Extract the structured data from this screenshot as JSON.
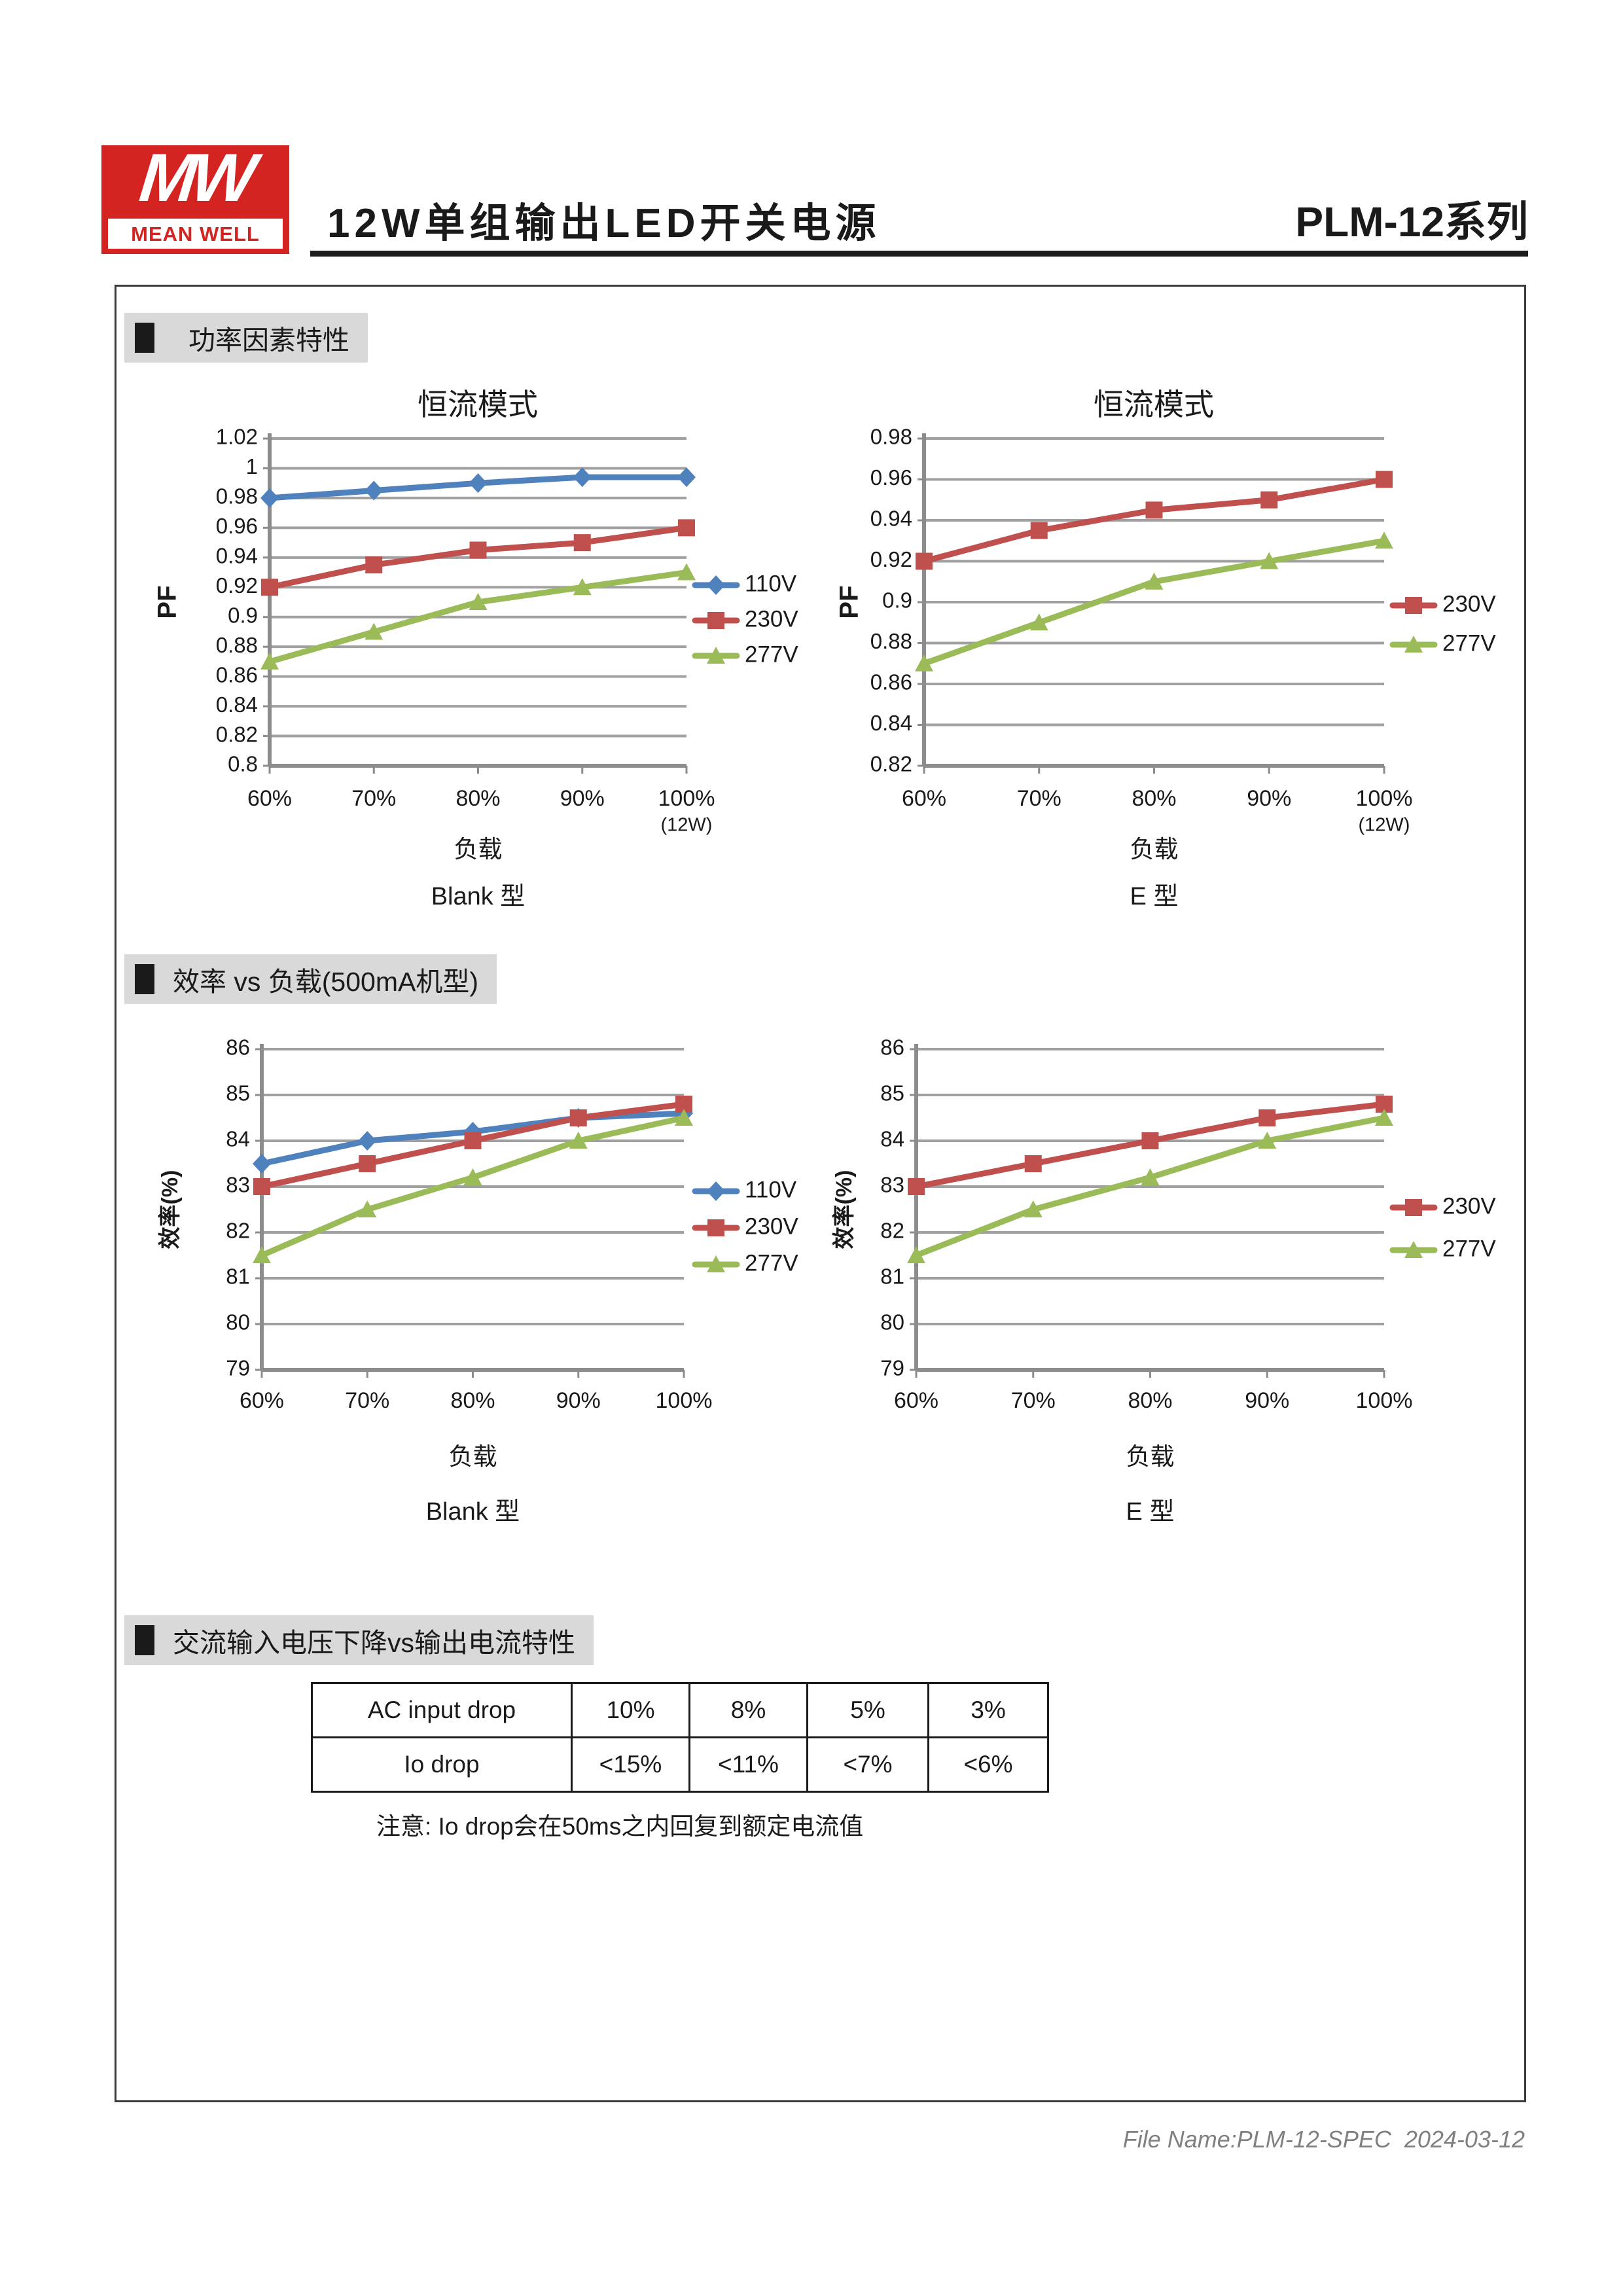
{
  "header": {
    "logo_mw": "MW",
    "logo_brand": "MEAN WELL",
    "title": "12W单组输出LED开关电源",
    "series_model": "PLM-12系列"
  },
  "sections": [
    {
      "title": "功率因素特性"
    },
    {
      "title": "效率 vs 负载(500mA机型)"
    },
    {
      "title": "交流输入电压下降vs输出电流特性"
    }
  ],
  "chart_data": [
    {
      "id": "pf-blank",
      "type": "line",
      "title": "恒流模式",
      "ylabel": "PF",
      "xlabel": "负载",
      "x_note": "(12W)",
      "caption": "Blank 型",
      "categories": [
        "60%",
        "70%",
        "80%",
        "90%",
        "100%"
      ],
      "ylim": [
        0.8,
        1.02
      ],
      "ystep": 0.02,
      "grid": true,
      "legend_position": "right",
      "series": [
        {
          "name": "110V",
          "color": "#4F81BD",
          "marker": "diamond",
          "values": [
            0.98,
            0.985,
            0.99,
            0.994,
            0.994
          ]
        },
        {
          "name": "230V",
          "color": "#C0504D",
          "marker": "square",
          "values": [
            0.92,
            0.935,
            0.945,
            0.95,
            0.96
          ]
        },
        {
          "name": "277V",
          "color": "#9BBB59",
          "marker": "triangle",
          "values": [
            0.87,
            0.89,
            0.91,
            0.92,
            0.93
          ]
        }
      ]
    },
    {
      "id": "pf-e",
      "type": "line",
      "title": "恒流模式",
      "ylabel": "PF",
      "xlabel": "负载",
      "x_note": "(12W)",
      "caption": "E 型",
      "categories": [
        "60%",
        "70%",
        "80%",
        "90%",
        "100%"
      ],
      "ylim": [
        0.82,
        0.98
      ],
      "ystep": 0.02,
      "grid": true,
      "legend_position": "right",
      "series": [
        {
          "name": "230V",
          "color": "#C0504D",
          "marker": "square",
          "values": [
            0.92,
            0.935,
            0.945,
            0.95,
            0.96
          ]
        },
        {
          "name": "277V",
          "color": "#9BBB59",
          "marker": "triangle",
          "values": [
            0.87,
            0.89,
            0.91,
            0.92,
            0.93
          ]
        }
      ]
    },
    {
      "id": "eff-blank",
      "type": "line",
      "title": "",
      "ylabel": "效率(%)",
      "xlabel": "负载",
      "x_note": "",
      "caption": "Blank 型",
      "categories": [
        "60%",
        "70%",
        "80%",
        "90%",
        "100%"
      ],
      "ylim": [
        79,
        86
      ],
      "ystep": 1,
      "grid": true,
      "legend_position": "right",
      "series": [
        {
          "name": "110V",
          "color": "#4F81BD",
          "marker": "diamond",
          "values": [
            83.5,
            84.0,
            84.2,
            84.5,
            84.6
          ]
        },
        {
          "name": "230V",
          "color": "#C0504D",
          "marker": "square",
          "values": [
            83.0,
            83.5,
            84.0,
            84.5,
            84.8
          ]
        },
        {
          "name": "277V",
          "color": "#9BBB59",
          "marker": "triangle",
          "values": [
            81.5,
            82.5,
            83.2,
            84.0,
            84.5
          ]
        }
      ]
    },
    {
      "id": "eff-e",
      "type": "line",
      "title": "",
      "ylabel": "效率(%)",
      "xlabel": "负载",
      "x_note": "",
      "caption": "E 型",
      "categories": [
        "60%",
        "70%",
        "80%",
        "90%",
        "100%"
      ],
      "ylim": [
        79,
        86
      ],
      "ystep": 1,
      "grid": true,
      "legend_position": "right",
      "series": [
        {
          "name": "230V",
          "color": "#C0504D",
          "marker": "square",
          "values": [
            83.0,
            83.5,
            84.0,
            84.5,
            84.8
          ]
        },
        {
          "name": "277V",
          "color": "#9BBB59",
          "marker": "triangle",
          "values": [
            81.5,
            82.5,
            83.2,
            84.0,
            84.5
          ]
        }
      ]
    }
  ],
  "table": {
    "rows": [
      {
        "label": "AC input drop",
        "values": [
          "10%",
          "8%",
          "5%",
          "3%"
        ]
      },
      {
        "label": "Io drop",
        "values": [
          "<15%",
          "<11%",
          "<7%",
          "<6%"
        ]
      }
    ],
    "note": "注意: Io drop会在50ms之内回复到额定电流值"
  },
  "footer": {
    "text": "File Name:PLM-12-SPEC  2024-03-12"
  },
  "colors": {
    "accent_blue": "#4F81BD",
    "accent_red": "#C0504D",
    "accent_green": "#9BBB59",
    "logo_red": "#D42422",
    "grid_gray": "#A0A0A0",
    "axis_gray": "#8C8C8C",
    "section_bg": "#D9D9D9",
    "footer_gray": "#808080"
  }
}
